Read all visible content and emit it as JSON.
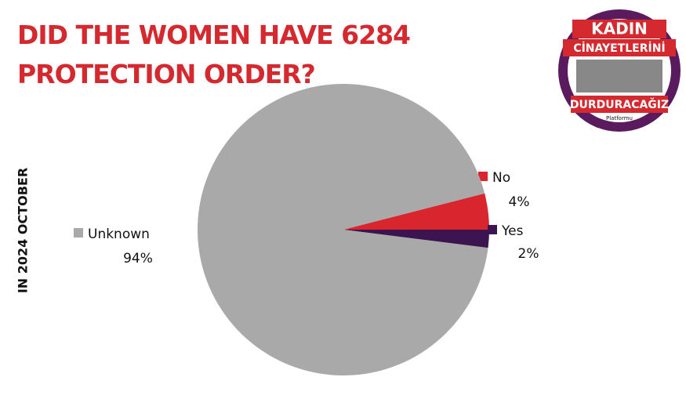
{
  "chart_data": {
    "type": "pie",
    "title": "DID THE WOMEN HAVE 6284 PROTECTION ORDER?",
    "subtitle": "IN 2024 OCTOBER",
    "categories": [
      "No",
      "Yes",
      "Unknown"
    ],
    "values": [
      4,
      2,
      94
    ],
    "value_labels": [
      "4%",
      "2%",
      "94%"
    ],
    "colors": [
      "#d9262e",
      "#3b1450",
      "#a9a9a9"
    ]
  },
  "logo": {
    "line1": "KADIN",
    "line2": "CİNAYETLERİNİ",
    "line3": "DURDURACAĞIZ",
    "line4": "Platformu"
  }
}
